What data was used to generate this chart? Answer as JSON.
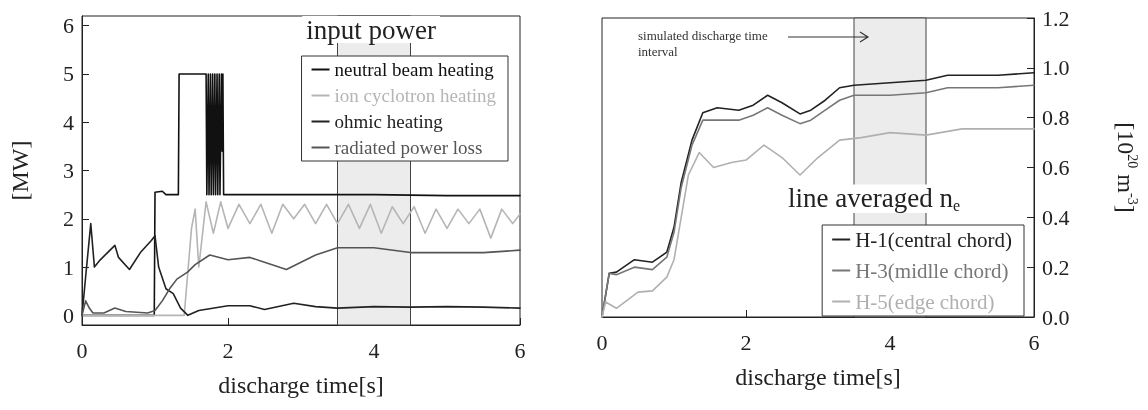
{
  "chart_data": [
    {
      "type": "line",
      "xlabel": "discharge time[s]",
      "ylabel": "[MW]",
      "legend_title": "input power",
      "legend": "top right",
      "grid": false,
      "marker": "none",
      "line_style": "solid",
      "xlim": [
        0,
        6
      ],
      "xticks": [
        0,
        2,
        4,
        6
      ],
      "ylim": [
        -0.2,
        6.2
      ],
      "yticks": [
        0,
        1,
        2,
        3,
        4,
        5,
        6
      ],
      "bands": [
        {
          "axis": "x",
          "from": 3.5,
          "to": 4.5,
          "color": "#ececec"
        }
      ],
      "series": [
        {
          "name": "neutral beam heating",
          "color": "#111111",
          "x": [
            0,
            0.99,
            1.0,
            1.1,
            1.15,
            1.32,
            1.33,
            1.7,
            1.71,
            1.73,
            1.74,
            1.76,
            1.77,
            1.79,
            1.8,
            1.82,
            1.83,
            1.85,
            1.86,
            1.88,
            1.89,
            1.91,
            1.92,
            1.93,
            1.94,
            1.95,
            2.0,
            3.0,
            4.0,
            5.0,
            6.0
          ],
          "values": [
            0,
            0,
            2.55,
            2.57,
            2.5,
            2.5,
            5.0,
            5.0,
            2.5,
            5.0,
            2.5,
            5.0,
            2.5,
            5.0,
            2.5,
            5.0,
            2.5,
            5.0,
            2.5,
            5.0,
            2.5,
            5.0,
            3.4,
            5.0,
            2.5,
            2.5,
            2.5,
            2.5,
            2.5,
            2.48,
            2.48
          ]
        },
        {
          "name": "ion cyclotron heating",
          "color": "#b5b5b5",
          "x": [
            0,
            1.4,
            1.45,
            1.5,
            1.55,
            1.6,
            1.7,
            1.8,
            1.9,
            2.0,
            2.15,
            2.3,
            2.45,
            2.6,
            2.75,
            2.9,
            3.05,
            3.2,
            3.35,
            3.5,
            3.65,
            3.8,
            3.95,
            4.1,
            4.25,
            4.4,
            4.55,
            4.7,
            4.85,
            5.0,
            5.15,
            5.3,
            5.45,
            5.6,
            5.75,
            5.9,
            6.0
          ],
          "values": [
            0,
            0,
            0.9,
            1.8,
            2.2,
            1.0,
            2.35,
            1.7,
            2.35,
            1.8,
            2.3,
            1.9,
            2.3,
            1.7,
            2.3,
            2.0,
            2.3,
            1.9,
            2.3,
            1.9,
            2.3,
            1.8,
            2.3,
            1.7,
            2.25,
            1.9,
            2.25,
            1.7,
            2.2,
            1.8,
            2.2,
            1.9,
            2.2,
            1.6,
            2.2,
            1.9,
            2.1
          ]
        },
        {
          "name": "ohmic heating",
          "color": "#222222",
          "x": [
            0,
            0.05,
            0.12,
            0.17,
            0.25,
            0.35,
            0.45,
            0.5,
            0.65,
            0.8,
            0.95,
            1.0,
            1.05,
            1.15,
            1.25,
            1.35,
            1.45,
            1.6,
            2.0,
            2.3,
            2.5,
            2.9,
            3.2,
            3.5,
            4.0,
            4.5,
            5.0,
            5.5,
            6.0
          ],
          "values": [
            0,
            0.8,
            1.9,
            1.0,
            1.15,
            1.3,
            1.45,
            1.2,
            0.95,
            1.3,
            1.55,
            1.65,
            1.0,
            0.55,
            0.45,
            0.15,
            0.0,
            0.1,
            0.2,
            0.2,
            0.12,
            0.25,
            0.18,
            0.15,
            0.18,
            0.17,
            0.18,
            0.17,
            0.15
          ]
        },
        {
          "name": "radiated power loss",
          "color": "#555555",
          "x": [
            0,
            0.05,
            0.1,
            0.15,
            0.3,
            0.45,
            0.6,
            0.9,
            1.0,
            1.1,
            1.2,
            1.3,
            1.45,
            1.55,
            1.75,
            2.0,
            2.3,
            2.5,
            2.8,
            3.0,
            3.2,
            3.5,
            4.0,
            4.5,
            5.0,
            5.5,
            6.0
          ],
          "values": [
            0,
            0.3,
            0.15,
            0.05,
            0.05,
            0.15,
            0.08,
            0.05,
            0.1,
            0.3,
            0.55,
            0.75,
            0.9,
            1.05,
            1.25,
            1.15,
            1.2,
            1.1,
            0.95,
            1.1,
            1.25,
            1.4,
            1.4,
            1.3,
            1.3,
            1.3,
            1.35
          ]
        }
      ]
    },
    {
      "type": "line",
      "xlabel": "discharge time[s]",
      "y2label": "[10$^{20}$ m$^{-3}$]",
      "legend_title": "line averaged n$_{e}$",
      "legend": "bottom right",
      "grid": false,
      "marker": "none",
      "line_style": "solid",
      "xlim": [
        0,
        6
      ],
      "xticks": [
        0,
        2,
        4,
        6
      ],
      "y2lim": [
        0,
        1.2
      ],
      "y2ticks": [
        {
          "value": 0,
          "label": "0.0"
        },
        {
          "value": 0.2,
          "label": "0.2"
        },
        {
          "value": 0.4,
          "label": "0.4"
        },
        {
          "value": 0.6,
          "label": "0.6"
        },
        {
          "value": 0.8,
          "label": "0.8"
        },
        {
          "value": 1,
          "label": "1.0"
        },
        {
          "value": 1.2,
          "label": "1.2"
        }
      ],
      "bands": [
        {
          "axis": "x",
          "from": 3.5,
          "to": 4.5,
          "color": "#ececec"
        }
      ],
      "annotations": [
        "simulated discharge time interval"
      ],
      "series": [
        {
          "name": "H-1(central chord)",
          "color": "#222222",
          "axis": "y2",
          "x": [
            0,
            0.1,
            0.2,
            0.45,
            0.7,
            0.9,
            1.0,
            1.1,
            1.25,
            1.4,
            1.6,
            1.9,
            2.1,
            2.3,
            2.5,
            2.75,
            2.9,
            3.1,
            3.3,
            3.5,
            4.0,
            4.5,
            4.8,
            5.5,
            6.0
          ],
          "values": [
            0,
            0.175,
            0.18,
            0.23,
            0.22,
            0.26,
            0.36,
            0.54,
            0.71,
            0.82,
            0.84,
            0.83,
            0.85,
            0.89,
            0.86,
            0.815,
            0.83,
            0.87,
            0.92,
            0.93,
            0.94,
            0.95,
            0.97,
            0.97,
            0.98
          ]
        },
        {
          "name": "H-3(midlle chord)",
          "color": "#777777",
          "axis": "y2",
          "x": [
            0,
            0.1,
            0.2,
            0.45,
            0.7,
            0.9,
            1.0,
            1.1,
            1.25,
            1.4,
            1.6,
            1.9,
            2.1,
            2.3,
            2.5,
            2.75,
            2.9,
            3.1,
            3.3,
            3.5,
            4.0,
            4.5,
            4.8,
            5.5,
            6.0
          ],
          "values": [
            0,
            0.175,
            0.17,
            0.2,
            0.19,
            0.24,
            0.34,
            0.52,
            0.69,
            0.79,
            0.79,
            0.79,
            0.81,
            0.84,
            0.81,
            0.776,
            0.79,
            0.83,
            0.87,
            0.89,
            0.89,
            0.9,
            0.92,
            0.92,
            0.93
          ]
        },
        {
          "name": "H-5(edge chord)",
          "color": "#b0b0b0",
          "axis": "y2",
          "x": [
            0,
            0.05,
            0.2,
            0.5,
            0.7,
            0.9,
            1.0,
            1.1,
            1.2,
            1.35,
            1.55,
            1.8,
            2.0,
            2.25,
            2.5,
            2.75,
            3.0,
            3.3,
            3.6,
            4.0,
            4.5,
            5.0,
            5.5,
            6.0
          ],
          "values": [
            0,
            0.06,
            0.035,
            0.1,
            0.105,
            0.16,
            0.23,
            0.4,
            0.57,
            0.66,
            0.6,
            0.62,
            0.63,
            0.69,
            0.64,
            0.57,
            0.64,
            0.71,
            0.72,
            0.74,
            0.73,
            0.755,
            0.755,
            0.755
          ]
        }
      ]
    }
  ]
}
